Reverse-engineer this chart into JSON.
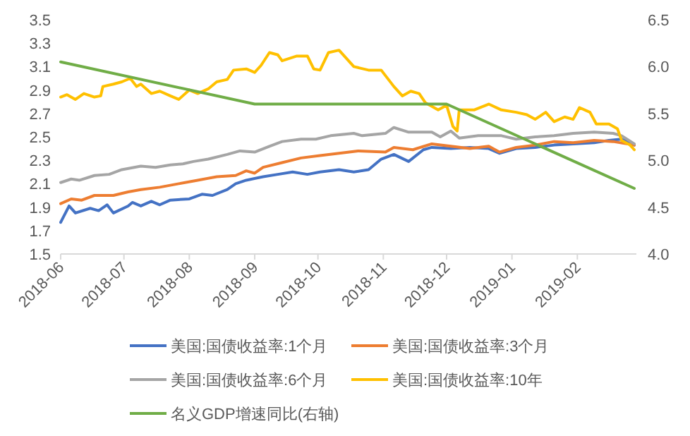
{
  "chart_data": {
    "type": "line",
    "xlim": [
      "2018-06-01",
      "2019-03-01"
    ],
    "xticks": [
      {
        "value": "2018-06-01",
        "label": "2018-06"
      },
      {
        "value": "2018-07-01",
        "label": "2018-07"
      },
      {
        "value": "2018-08-01",
        "label": "2018-08"
      },
      {
        "value": "2018-09-01",
        "label": "2018-09"
      },
      {
        "value": "2018-10-01",
        "label": "2018-10"
      },
      {
        "value": "2018-11-01",
        "label": "2018-11"
      },
      {
        "value": "2018-12-01",
        "label": "2018-12"
      },
      {
        "value": "2019-01-01",
        "label": "2019-01"
      },
      {
        "value": "2019-02-01",
        "label": "2019-02"
      }
    ],
    "ylim": [
      1.5,
      3.5
    ],
    "yticks": [
      {
        "value": 1.5,
        "label": "1.5"
      },
      {
        "value": 1.7,
        "label": "1.7"
      },
      {
        "value": 1.9,
        "label": "1.9"
      },
      {
        "value": 2.1,
        "label": "2.1"
      },
      {
        "value": 2.3,
        "label": "2.3"
      },
      {
        "value": 2.5,
        "label": "2.5"
      },
      {
        "value": 2.7,
        "label": "2.7"
      },
      {
        "value": 2.9,
        "label": "2.9"
      },
      {
        "value": 3.1,
        "label": "3.1"
      },
      {
        "value": 3.3,
        "label": "3.3"
      },
      {
        "value": 3.5,
        "label": "3.5"
      }
    ],
    "y2lim": [
      4.0,
      6.5
    ],
    "y2ticks": [
      {
        "value": 4.0,
        "label": "4.0"
      },
      {
        "value": 4.5,
        "label": "4.5"
      },
      {
        "value": 5.0,
        "label": "5.0"
      },
      {
        "value": 5.5,
        "label": "5.5"
      },
      {
        "value": 6.0,
        "label": "6.0"
      },
      {
        "value": 6.5,
        "label": "6.5"
      }
    ],
    "grid": false,
    "legend": "bottom",
    "marker": "none",
    "line_style": "solid",
    "series": [
      {
        "name": "美国:国债收益率:1个月",
        "color": "#4472c4",
        "x": [
          "2018-06-01",
          "2018-06-05",
          "2018-06-08",
          "2018-06-15",
          "2018-06-19",
          "2018-06-23",
          "2018-06-26",
          "2018-07-03",
          "2018-07-05",
          "2018-07-09",
          "2018-07-14",
          "2018-07-18",
          "2018-07-23",
          "2018-08-01",
          "2018-08-07",
          "2018-08-12",
          "2018-08-19",
          "2018-08-23",
          "2018-08-28",
          "2018-09-05",
          "2018-09-12",
          "2018-09-19",
          "2018-09-26",
          "2018-10-02",
          "2018-10-11",
          "2018-10-18",
          "2018-10-25",
          "2018-10-31",
          "2018-11-06",
          "2018-11-13",
          "2018-11-20",
          "2018-11-24",
          "2018-12-03",
          "2018-12-12",
          "2018-12-21",
          "2018-12-26",
          "2019-01-03",
          "2019-01-12",
          "2019-01-21",
          "2019-01-30",
          "2019-02-09",
          "2019-02-16",
          "2019-02-22",
          "2019-02-28"
        ],
        "values": [
          1.77,
          1.91,
          1.85,
          1.89,
          1.87,
          1.92,
          1.85,
          1.91,
          1.94,
          1.91,
          1.95,
          1.92,
          1.96,
          1.97,
          2.01,
          2.0,
          2.05,
          2.1,
          2.13,
          2.16,
          2.18,
          2.2,
          2.18,
          2.2,
          2.22,
          2.2,
          2.22,
          2.31,
          2.35,
          2.29,
          2.39,
          2.41,
          2.4,
          2.41,
          2.4,
          2.36,
          2.4,
          2.41,
          2.43,
          2.44,
          2.45,
          2.47,
          2.48,
          2.43
        ]
      },
      {
        "name": "美国:国债收益率:3个月",
        "color": "#ed7d31",
        "x": [
          "2018-06-01",
          "2018-06-06",
          "2018-06-11",
          "2018-06-17",
          "2018-06-26",
          "2018-07-03",
          "2018-07-09",
          "2018-07-18",
          "2018-07-27",
          "2018-08-05",
          "2018-08-14",
          "2018-08-23",
          "2018-08-28",
          "2018-09-01",
          "2018-09-05",
          "2018-09-14",
          "2018-09-23",
          "2018-10-02",
          "2018-10-11",
          "2018-10-20",
          "2018-11-02",
          "2018-11-06",
          "2018-11-15",
          "2018-11-24",
          "2018-12-03",
          "2018-12-12",
          "2018-12-21",
          "2018-12-26",
          "2019-01-03",
          "2019-01-12",
          "2019-01-21",
          "2019-01-30",
          "2019-02-09",
          "2019-02-18",
          "2019-02-28"
        ],
        "values": [
          1.93,
          1.97,
          1.96,
          2.0,
          2.0,
          2.03,
          2.05,
          2.07,
          2.1,
          2.13,
          2.16,
          2.17,
          2.21,
          2.19,
          2.24,
          2.28,
          2.32,
          2.34,
          2.36,
          2.38,
          2.37,
          2.41,
          2.39,
          2.44,
          2.42,
          2.4,
          2.42,
          2.37,
          2.41,
          2.43,
          2.46,
          2.45,
          2.47,
          2.46,
          2.43
        ]
      },
      {
        "name": "美国:国债收益率:6个月",
        "color": "#a5a5a5",
        "x": [
          "2018-06-01",
          "2018-06-06",
          "2018-06-10",
          "2018-06-17",
          "2018-06-24",
          "2018-06-30",
          "2018-07-09",
          "2018-07-16",
          "2018-07-23",
          "2018-07-29",
          "2018-08-03",
          "2018-08-10",
          "2018-08-19",
          "2018-08-25",
          "2018-09-01",
          "2018-09-08",
          "2018-09-14",
          "2018-09-23",
          "2018-09-30",
          "2018-10-07",
          "2018-10-18",
          "2018-10-22",
          "2018-11-02",
          "2018-11-06",
          "2018-11-13",
          "2018-11-24",
          "2018-11-28",
          "2018-12-03",
          "2018-12-07",
          "2018-12-16",
          "2018-12-27",
          "2019-01-03",
          "2019-01-12",
          "2019-01-21",
          "2019-01-30",
          "2019-02-09",
          "2019-02-18",
          "2019-02-22",
          "2019-02-28"
        ],
        "values": [
          2.11,
          2.14,
          2.13,
          2.17,
          2.18,
          2.22,
          2.25,
          2.24,
          2.26,
          2.27,
          2.29,
          2.31,
          2.35,
          2.38,
          2.37,
          2.42,
          2.46,
          2.48,
          2.48,
          2.51,
          2.53,
          2.51,
          2.53,
          2.58,
          2.54,
          2.54,
          2.5,
          2.55,
          2.49,
          2.51,
          2.51,
          2.48,
          2.5,
          2.51,
          2.53,
          2.54,
          2.53,
          2.51,
          2.44
        ]
      },
      {
        "name": "美国:国债收益率:10年",
        "color": "#ffc000",
        "x": [
          "2018-06-01",
          "2018-06-04",
          "2018-06-08",
          "2018-06-12",
          "2018-06-17",
          "2018-06-20",
          "2018-06-21",
          "2018-06-26",
          "2018-06-30",
          "2018-07-04",
          "2018-07-07",
          "2018-07-09",
          "2018-07-14",
          "2018-07-18",
          "2018-07-23",
          "2018-07-27",
          "2018-08-01",
          "2018-08-05",
          "2018-08-10",
          "2018-08-14",
          "2018-08-19",
          "2018-08-22",
          "2018-08-28",
          "2018-09-01",
          "2018-09-04",
          "2018-09-08",
          "2018-09-12",
          "2018-09-14",
          "2018-09-21",
          "2018-09-26",
          "2018-09-29",
          "2018-10-02",
          "2018-10-06",
          "2018-10-11",
          "2018-10-18",
          "2018-10-25",
          "2018-10-31",
          "2018-11-06",
          "2018-11-10",
          "2018-11-14",
          "2018-11-18",
          "2018-11-21",
          "2018-11-27",
          "2018-12-01",
          "2018-12-04",
          "2018-12-06",
          "2018-12-07",
          "2018-12-14",
          "2018-12-21",
          "2018-12-27",
          "2019-01-03",
          "2019-01-08",
          "2019-01-12",
          "2019-01-17",
          "2019-01-21",
          "2019-01-26",
          "2019-01-30",
          "2019-02-02",
          "2019-02-07",
          "2019-02-10",
          "2019-02-16",
          "2019-02-20",
          "2019-02-22",
          "2019-02-26",
          "2019-02-28"
        ],
        "values": [
          2.84,
          2.86,
          2.82,
          2.87,
          2.84,
          2.85,
          2.93,
          2.95,
          2.97,
          3.0,
          2.93,
          2.95,
          2.87,
          2.89,
          2.85,
          2.82,
          2.9,
          2.87,
          2.91,
          2.97,
          2.99,
          3.07,
          3.08,
          3.05,
          3.11,
          3.22,
          3.2,
          3.15,
          3.19,
          3.19,
          3.08,
          3.07,
          3.22,
          3.24,
          3.1,
          3.07,
          3.07,
          2.93,
          2.85,
          2.89,
          2.87,
          2.79,
          2.73,
          2.77,
          2.59,
          2.55,
          2.73,
          2.73,
          2.78,
          2.73,
          2.71,
          2.69,
          2.65,
          2.71,
          2.63,
          2.67,
          2.65,
          2.75,
          2.71,
          2.61,
          2.61,
          2.57,
          2.47,
          2.43,
          2.39
        ]
      },
      {
        "name": "名义GDP增速同比(右轴)",
        "color": "#70ad47",
        "axis": "y2",
        "x": [
          "2018-06-01",
          "2018-09-01",
          "2018-12-01",
          "2019-02-28"
        ],
        "values": [
          6.05,
          5.6,
          5.6,
          4.7
        ]
      }
    ]
  }
}
